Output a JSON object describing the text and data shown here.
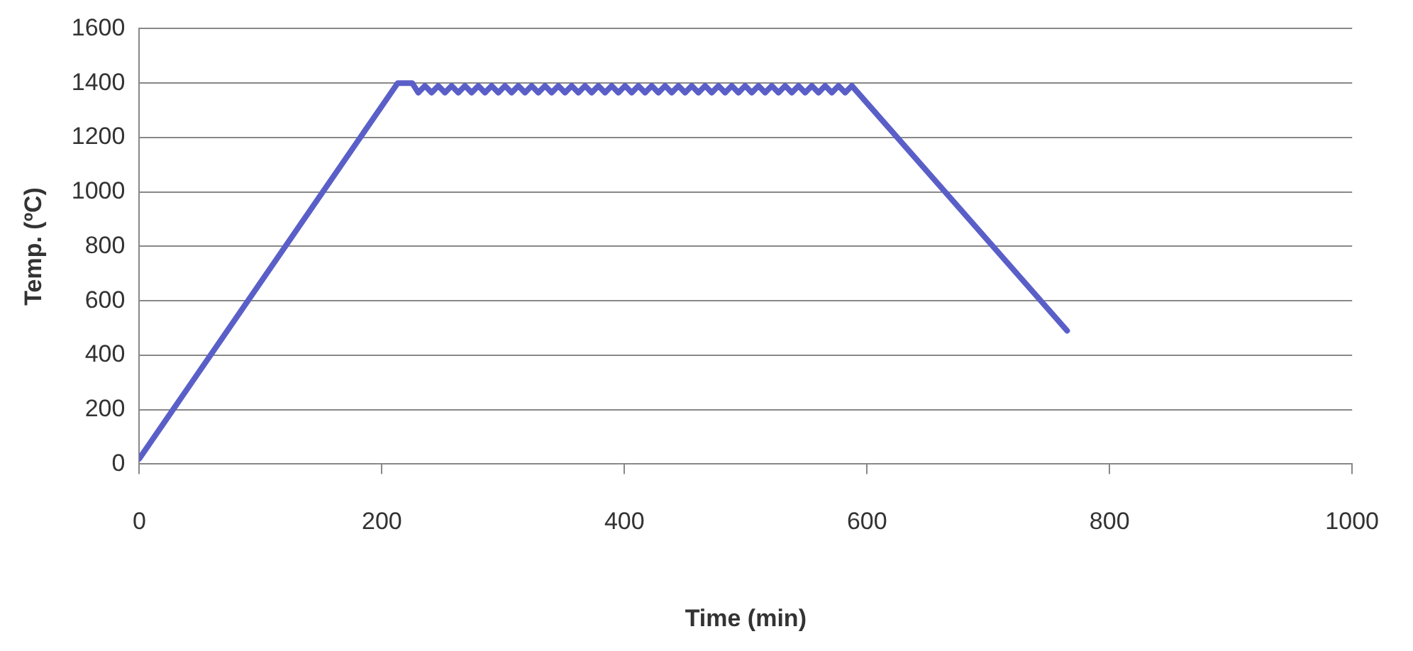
{
  "chart_data": {
    "type": "line",
    "xlabel": "Time (min)",
    "ylabel": "Temp. (ºC)",
    "x": [
      0,
      213,
      225,
      230,
      235.5,
      241,
      246.5,
      252,
      257.5,
      263,
      268.5,
      274,
      279.5,
      285,
      290.5,
      296,
      301.5,
      307,
      312.5,
      318,
      323.5,
      329,
      334.5,
      340,
      345.5,
      351,
      356.5,
      362,
      367.5,
      373,
      378.5,
      384,
      389.5,
      395,
      400.5,
      406,
      411.5,
      417,
      422.5,
      428,
      433.5,
      439,
      444.5,
      450,
      455.5,
      461,
      466.5,
      472,
      477.5,
      483,
      488.5,
      494,
      499.5,
      505,
      510.5,
      516,
      521.5,
      527,
      532.5,
      538,
      543.5,
      549,
      554.5,
      560,
      565.5,
      571,
      576.5,
      582,
      587.5,
      765
    ],
    "series": [
      {
        "color": "#5a5fc8",
        "values": [
          20,
          1400,
          1400,
          1365,
          1390,
          1365,
          1390,
          1365,
          1390,
          1365,
          1390,
          1365,
          1390,
          1365,
          1390,
          1365,
          1390,
          1365,
          1390,
          1365,
          1390,
          1365,
          1390,
          1365,
          1390,
          1365,
          1390,
          1365,
          1390,
          1365,
          1390,
          1365,
          1390,
          1365,
          1390,
          1365,
          1390,
          1365,
          1390,
          1365,
          1390,
          1365,
          1390,
          1365,
          1390,
          1365,
          1390,
          1365,
          1390,
          1365,
          1390,
          1365,
          1390,
          1365,
          1390,
          1365,
          1390,
          1365,
          1390,
          1365,
          1390,
          1365,
          1390,
          1365,
          1390,
          1365,
          1390,
          1365,
          1390,
          490
        ]
      }
    ],
    "xlim": [
      0,
      1000
    ],
    "xticks": [
      0,
      200,
      400,
      600,
      800,
      1000
    ],
    "ylim": [
      0,
      1600
    ],
    "yticks": [
      0,
      200,
      400,
      600,
      800,
      1000,
      1200,
      1400,
      1600
    ],
    "grid": "y",
    "legend": false,
    "marker": "none",
    "line_style": "solid"
  }
}
